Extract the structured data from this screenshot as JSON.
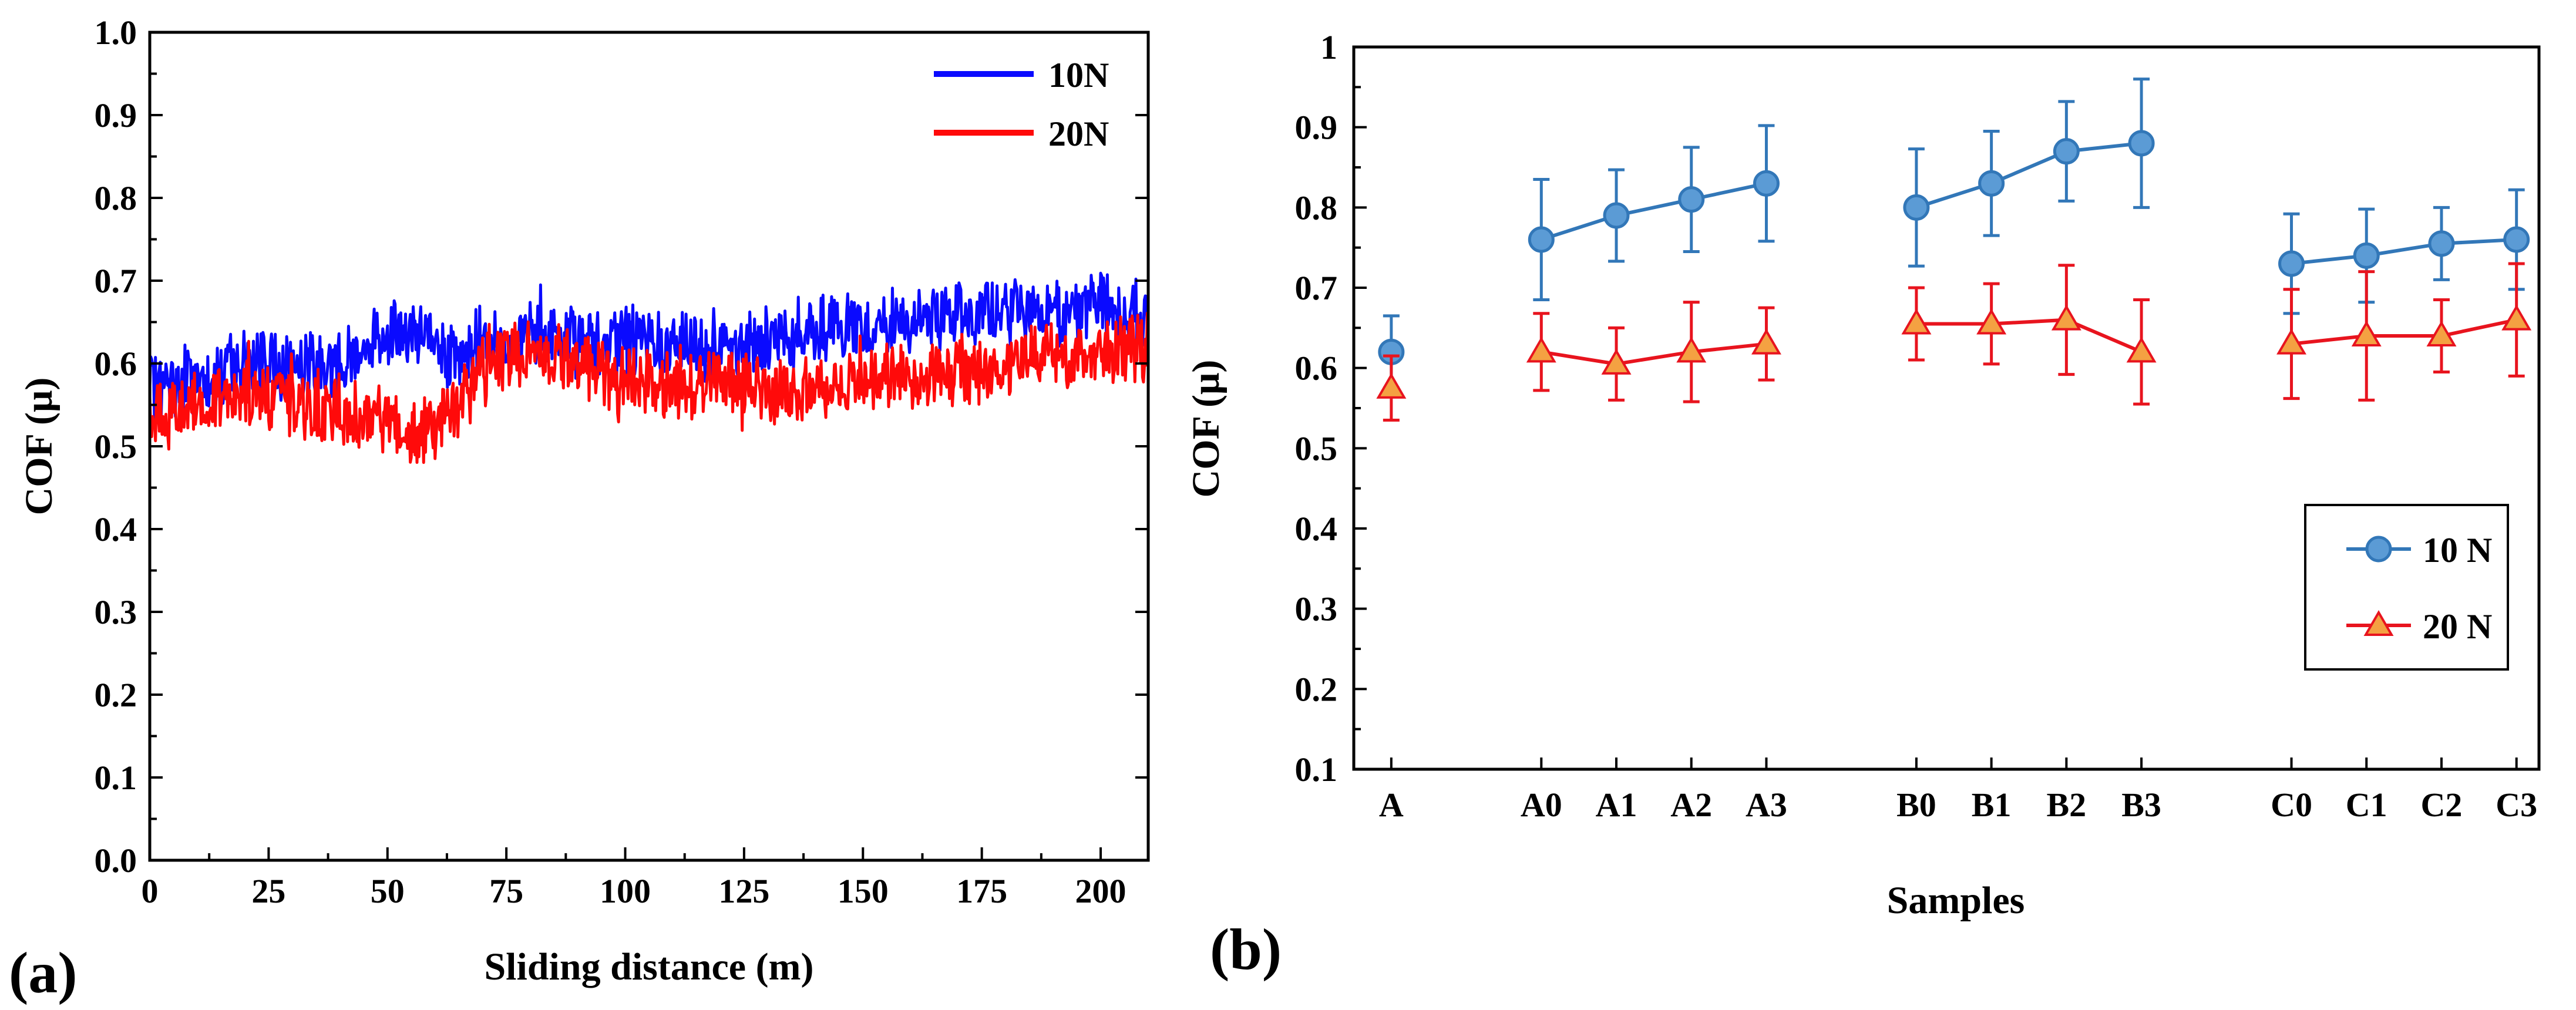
{
  "chart_data": [
    {
      "panel_label": "(a)",
      "type": "line",
      "title": "",
      "xlabel": "Sliding distance (m)",
      "ylabel": "COF (μ)",
      "xlim": [
        0,
        210
      ],
      "ylim": [
        0,
        1.0
      ],
      "xticks": [
        0,
        25,
        50,
        75,
        100,
        125,
        150,
        175,
        200
      ],
      "xtick_labels": [
        "0",
        "25",
        "50",
        "75",
        "100",
        "125",
        "150",
        "175",
        "200"
      ],
      "yticks": [
        0,
        0.1,
        0.2,
        0.3,
        0.4,
        0.5,
        0.6,
        0.7,
        0.8,
        0.9,
        1.0
      ],
      "ytick_labels": [
        "0.0",
        "0.1",
        "0.2",
        "0.3",
        "0.4",
        "0.5",
        "0.6",
        "0.7",
        "0.8",
        "0.9",
        "1.0"
      ],
      "legend_position": "top-right",
      "series": [
        {
          "name": "10N",
          "color": "#0a0aff",
          "x": [
            0,
            10,
            20,
            30,
            40,
            50,
            60,
            65,
            70,
            80,
            90,
            100,
            110,
            120,
            130,
            140,
            150,
            160,
            170,
            180,
            190,
            200,
            210
          ],
          "mean": [
            0.57,
            0.58,
            0.6,
            0.6,
            0.6,
            0.64,
            0.63,
            0.6,
            0.63,
            0.63,
            0.63,
            0.63,
            0.62,
            0.62,
            0.63,
            0.64,
            0.64,
            0.65,
            0.66,
            0.66,
            0.66,
            0.67,
            0.65
          ],
          "noise": 0.035
        },
        {
          "name": "20N",
          "color": "#ff0a0a",
          "x": [
            0,
            10,
            20,
            30,
            40,
            50,
            55,
            60,
            65,
            70,
            80,
            90,
            100,
            110,
            120,
            130,
            140,
            150,
            160,
            170,
            180,
            190,
            200,
            210
          ],
          "mean": [
            0.53,
            0.55,
            0.57,
            0.55,
            0.54,
            0.53,
            0.51,
            0.52,
            0.55,
            0.6,
            0.62,
            0.6,
            0.58,
            0.57,
            0.58,
            0.57,
            0.57,
            0.58,
            0.58,
            0.59,
            0.6,
            0.61,
            0.62,
            0.62
          ],
          "noise": 0.035
        }
      ]
    },
    {
      "panel_label": "(b)",
      "type": "line",
      "title": "",
      "xlabel": "Samples",
      "ylabel": "COF (μ)",
      "ylim": [
        0.1,
        1.0
      ],
      "yticks": [
        0.1,
        0.2,
        0.3,
        0.4,
        0.5,
        0.6,
        0.7,
        0.8,
        0.9,
        1.0
      ],
      "ytick_labels": [
        "0.1",
        "0.2",
        "0.3",
        "0.4",
        "0.5",
        "0.6",
        "0.7",
        "0.8",
        "0.9",
        "1"
      ],
      "categories": [
        "A",
        "A0",
        "A1",
        "A2",
        "A3",
        "B0",
        "B1",
        "B2",
        "B3",
        "C0",
        "C1",
        "C2",
        "C3"
      ],
      "category_positions": [
        0,
        2,
        3,
        4,
        5,
        7,
        8,
        9,
        10,
        12,
        13,
        14,
        15
      ],
      "xlim": [
        -0.5,
        15.3
      ],
      "groups": [
        [
          0
        ],
        [
          1,
          2,
          3,
          4
        ],
        [
          5,
          6,
          7,
          8
        ],
        [
          9,
          10,
          11,
          12
        ]
      ],
      "legend_position": "bottom-right",
      "series": [
        {
          "name": "10 N",
          "color": "#3277b8",
          "fill": "#5b9bd5",
          "marker": "circle",
          "values": [
            0.62,
            0.76,
            0.79,
            0.81,
            0.83,
            0.8,
            0.83,
            0.87,
            0.88,
            0.73,
            0.74,
            0.755,
            0.76
          ],
          "errors": [
            0.045,
            0.075,
            0.057,
            0.065,
            0.072,
            0.073,
            0.065,
            0.062,
            0.08,
            0.062,
            0.058,
            0.045,
            0.062
          ]
        },
        {
          "name": "20 N",
          "color": "#e8141e",
          "fill": "#f4a142",
          "marker": "triangle",
          "values": [
            0.575,
            0.62,
            0.605,
            0.62,
            0.63,
            0.655,
            0.655,
            0.66,
            0.62,
            0.63,
            0.64,
            0.64,
            0.66
          ],
          "errors": [
            0.04,
            0.048,
            0.045,
            0.062,
            0.045,
            0.045,
            0.05,
            0.068,
            0.065,
            0.068,
            0.08,
            0.045,
            0.07
          ]
        }
      ]
    }
  ]
}
